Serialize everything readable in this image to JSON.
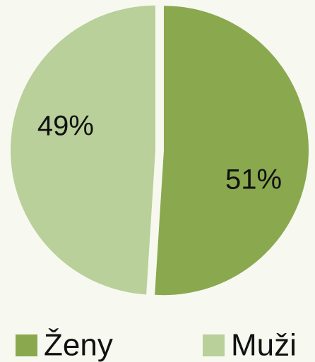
{
  "chart_data": {
    "type": "pie",
    "categories": [
      "Ženy",
      "Muži"
    ],
    "values": [
      51,
      49
    ],
    "value_labels": [
      "51%",
      "49%"
    ],
    "colors": [
      "#8aa84e",
      "#b9d09a"
    ]
  }
}
